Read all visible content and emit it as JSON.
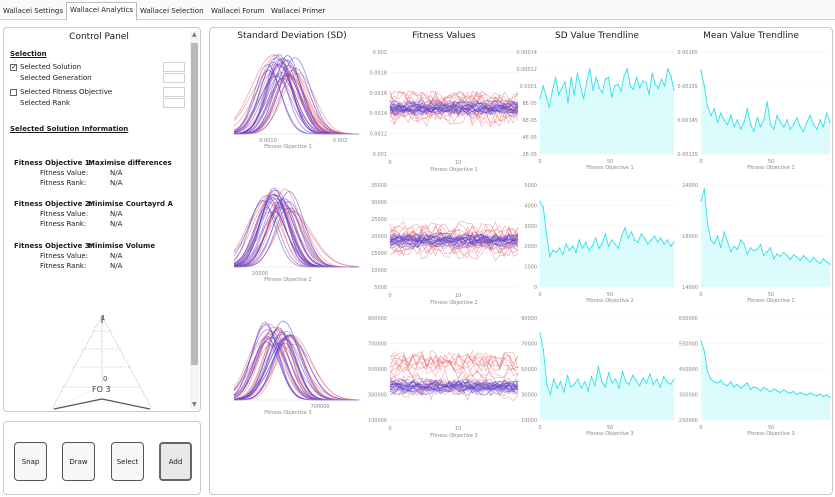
{
  "tabs": [
    {
      "label": "Wallacei Settings",
      "active": false
    },
    {
      "label": "Wallacei Analytics",
      "active": true
    },
    {
      "label": "Wallacei Selection",
      "active": false
    },
    {
      "label": "Wallacei Forum",
      "active": false
    },
    {
      "label": "Wallacei Primer",
      "active": false
    }
  ],
  "control_panel": {
    "title": "Control Panel",
    "selection_heading": "Selection",
    "selected_solution": "Selected Solution",
    "selected_generation": "Selected Generation",
    "selected_fitness_objective": "Selected Fitness Objective",
    "selected_rank": "Selected Rank",
    "selected_solution_checked": true,
    "selected_fitness_objective_checked": false,
    "info_heading": "Selected Solution Information",
    "objectives": [
      {
        "heading": "Fitness Objective 1:",
        "name": "Maximise differences",
        "value_label": "Fitness Value:",
        "value": "N/A",
        "rank_label": "Fitness Rank:",
        "rank": "N/A"
      },
      {
        "heading": "Fitness Objective 2:",
        "name": "Minimise Courtayrd A",
        "value_label": "Fitness Value:",
        "value": "N/A",
        "rank_label": "Fitness Rank:",
        "rank": "N/A"
      },
      {
        "heading": "Fitness Objective 3:",
        "name": "Minimise Volume",
        "value_label": "Fitness Value:",
        "value": "N/A",
        "rank_label": "Fitness Rank:",
        "rank": "N/A"
      }
    ],
    "radar": {
      "top_label": "1",
      "center_label": "0",
      "fo_label": "FO 3"
    }
  },
  "buttons": {
    "snap": "Snap",
    "draw": "Draw",
    "select": "Select",
    "add": "Add"
  },
  "colors": {
    "red_series": "#e8606a",
    "blue_series": "#5a3fd0",
    "trend_line": "#33e0e8",
    "trend_fill": "#dcfbfd"
  },
  "chart_data": [
    {
      "type": "line",
      "title": "Standard Deviation (SD)",
      "xlabel": "Fitness Objective 1",
      "x_ticks": [
        "0.0010",
        "0.002"
      ]
    },
    {
      "type": "line",
      "xlabel": "Fitness Objective 2",
      "x_ticks": [
        "20000"
      ]
    },
    {
      "type": "line",
      "xlabel": "Fitness Objective 3",
      "x_ticks": [
        "700000"
      ]
    },
    {
      "type": "line",
      "title": "Fitness Values",
      "xlabel": "Fitness Objective 1",
      "y_ticks": [
        "0.002",
        "0.0018",
        "0.0016",
        "0.0014",
        "0.0012",
        "0.001"
      ],
      "x_ticks": [
        "0",
        "10"
      ],
      "ylim": [
        0.001,
        0.0021
      ]
    },
    {
      "type": "line",
      "xlabel": "Fitness Objective 2",
      "y_ticks": [
        "35000",
        "30000",
        "25000",
        "20000",
        "15000",
        "10000",
        "5000"
      ],
      "x_ticks": [
        "0",
        "10"
      ],
      "ylim": [
        5000,
        35000
      ]
    },
    {
      "type": "line",
      "xlabel": "Fitness Objective 3",
      "y_ticks": [
        "900000",
        "700000",
        "500000",
        "300000",
        "100000"
      ],
      "x_ticks": [
        "0",
        "10"
      ],
      "ylim": [
        100000,
        900000
      ]
    },
    {
      "type": "area",
      "title": "SD Value Trendline",
      "xlabel": "Fitness Objective 1",
      "y_ticks": [
        "0.00014",
        "0.00012",
        "0.0001",
        "8E-05",
        "6E-05",
        "4E-05",
        "2E-05"
      ],
      "x_ticks": [
        "0",
        "50"
      ],
      "ylim": [
        2e-05,
        0.00014
      ],
      "values": [
        8.5e-05,
        0.0001,
        8.8e-05,
        7.5e-05,
        9.5e-05,
        0.00011,
        9e-05,
        9.7e-05,
        0.000105,
        8e-05,
        0.00011,
        9e-05,
        0.000115,
        0.0001,
        8.5e-05,
        0.000105,
        0.00012,
        9.5e-05,
        0.00011,
        9.8e-05,
        9.2e-05,
        0.000108,
        0.00011,
        8.7e-05,
        0.0001,
        0.000102,
        9.4e-05,
        0.000112,
        0.00012,
        0.0001,
        9.6e-05,
        0.00011,
        9.8e-05,
        0.000106,
        0.000104,
        9e-05,
        0.000115,
        0.000102,
        9.7e-05,
        0.000108,
        0.0001,
        0.00012,
        0.000112,
        9.5e-05
      ]
    },
    {
      "type": "area",
      "xlabel": "Fitness Objective 2",
      "y_ticks": [
        "5000",
        "4000",
        "3000",
        "2000",
        "1000",
        "0"
      ],
      "x_ticks": [
        "0",
        "50"
      ],
      "ylim": [
        0,
        5000
      ],
      "values": [
        4200,
        3900,
        2600,
        1500,
        1800,
        1700,
        1900,
        1600,
        2100,
        1800,
        2000,
        1700,
        2300,
        1900,
        2200,
        1800,
        2000,
        2400,
        1900,
        2100,
        2600,
        2000,
        2300,
        2100,
        1900,
        2500,
        2900,
        2400,
        2700,
        2300,
        2200,
        2600,
        2400,
        2100,
        2300,
        2500,
        2200,
        2400,
        2100,
        2300,
        2000,
        2200
      ]
    },
    {
      "type": "area",
      "xlabel": "Fitness Objective 3",
      "y_ticks": [
        "90000",
        "70000",
        "50000",
        "30000",
        "10000"
      ],
      "x_ticks": [
        "0",
        "50"
      ],
      "ylim": [
        10000,
        90000
      ],
      "values": [
        78000,
        65000,
        38000,
        30000,
        42000,
        35000,
        40000,
        32000,
        45000,
        36000,
        38000,
        42000,
        35000,
        40000,
        33000,
        44000,
        37000,
        52000,
        40000,
        36000,
        47000,
        39000,
        42000,
        35000,
        48000,
        40000,
        38000,
        45000,
        41000,
        37000,
        43000,
        39000,
        46000,
        38000,
        42000,
        36000,
        44000,
        40000,
        38000,
        42000
      ]
    },
    {
      "type": "area",
      "title": "Mean Value Trendline",
      "xlabel": "Fitness Objective 1",
      "y_ticks": [
        "0.00165",
        "0.00155",
        "0.00145",
        "0.00135"
      ],
      "x_ticks": [
        "0",
        "50"
      ],
      "ylim": [
        0.00135,
        0.0018
      ],
      "values": [
        0.00172,
        0.00165,
        0.00156,
        0.00152,
        0.00155,
        0.00149,
        0.00153,
        0.0015,
        0.00148,
        0.00152,
        0.00147,
        0.0015,
        0.00146,
        0.00149,
        0.00155,
        0.00148,
        0.00145,
        0.00151,
        0.00147,
        0.0015,
        0.00158,
        0.00148,
        0.00146,
        0.00152,
        0.00149,
        0.00147,
        0.0015,
        0.00146,
        0.00148,
        0.00151,
        0.00147,
        0.00145,
        0.00149,
        0.00152,
        0.00148,
        0.00146,
        0.0015,
        0.00147,
        0.00153,
        0.00149
      ]
    },
    {
      "type": "area",
      "xlabel": "Fitness Objective 2",
      "y_ticks": [
        "24000",
        "18000",
        "14000"
      ],
      "x_ticks": [
        "0",
        "50"
      ],
      "ylim": [
        14000,
        27000
      ],
      "values": [
        25000,
        26500,
        22000,
        20000,
        19500,
        20500,
        19000,
        21000,
        19800,
        18500,
        19200,
        18800,
        20000,
        19500,
        18200,
        19000,
        18600,
        18800,
        19400,
        18000,
        18500,
        19000,
        17600,
        18200,
        17900,
        18400,
        18000,
        17500,
        18100,
        17800,
        17400,
        18000,
        17600,
        17200,
        17800,
        17300,
        17000,
        17600,
        17200,
        16900
      ]
    },
    {
      "type": "area",
      "xlabel": "Fitness Objective 3",
      "y_ticks": [
        "650000",
        "550000",
        "450000",
        "350000",
        "250000"
      ],
      "x_ticks": [
        "0",
        "50"
      ],
      "ylim": [
        250000,
        650000
      ],
      "values": [
        560000,
        520000,
        440000,
        410000,
        400000,
        395000,
        405000,
        390000,
        385000,
        400000,
        380000,
        390000,
        375000,
        385000,
        395000,
        370000,
        380000,
        375000,
        365000,
        378000,
        370000,
        360000,
        372000,
        365000,
        358000,
        368000,
        360000,
        355000,
        362000,
        350000,
        358000,
        352000,
        348000,
        356000,
        350000,
        345000,
        352000,
        342000,
        348000,
        340000
      ]
    }
  ]
}
